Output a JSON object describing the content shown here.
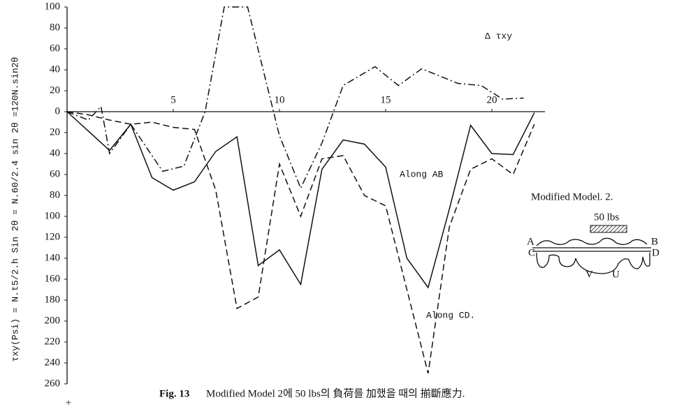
{
  "chart_data": {
    "type": "line",
    "y_label": "τxy(Psi) = N.t5/2.h Sin 2θ = N.60/2.4 sin 2θ =120N.sin2θ",
    "caption_label": "Fig. 13",
    "caption": "Modified Model 2에 50 lbs의 負荷를 加했을 때의 揃斷應力.",
    "xlim": [
      0,
      22.5
    ],
    "ylim": [
      -260,
      100
    ],
    "xticks": [
      5,
      10,
      15,
      20
    ],
    "yticks": [
      100,
      80,
      60,
      40,
      20,
      0,
      {
        "value": -20,
        "label": "20"
      },
      {
        "value": -40,
        "label": "40"
      },
      {
        "value": -60,
        "label": "60"
      },
      {
        "value": -80,
        "label": "80"
      },
      {
        "value": -100,
        "label": "100"
      },
      {
        "value": -120,
        "label": "120"
      },
      {
        "value": -140,
        "label": "140"
      },
      {
        "value": -160,
        "label": "160"
      },
      {
        "value": -180,
        "label": "180"
      },
      {
        "value": -200,
        "label": "200"
      },
      {
        "value": -220,
        "label": "220"
      },
      {
        "value": -240,
        "label": "240"
      },
      {
        "value": -260,
        "label": "260"
      }
    ],
    "series": [
      {
        "name": "Along AB",
        "color": "#111111",
        "style": "solid",
        "x": [
          0,
          2,
          3,
          4,
          5,
          6,
          7,
          8,
          9,
          10,
          11,
          12,
          13,
          14,
          15,
          16,
          17,
          18,
          19,
          20,
          21,
          22
        ],
        "values": [
          0,
          -37,
          -12,
          -63,
          -75,
          -67,
          -38,
          -24,
          -147,
          -132,
          -165,
          -55,
          -27,
          -31,
          -53,
          -140,
          -168,
          -93,
          -13,
          -40,
          -41,
          -1
        ]
      },
      {
        "name": "Along CD.",
        "color": "#111111",
        "style": "dashed",
        "x": [
          0,
          1,
          2,
          3,
          4,
          5,
          6,
          7,
          8,
          9,
          10,
          11,
          12,
          13,
          14,
          15,
          16,
          17,
          18,
          19,
          20,
          21,
          22
        ],
        "values": [
          0,
          -3,
          -8,
          -12,
          -10,
          -15,
          -17,
          -75,
          -188,
          -177,
          -50,
          -100,
          -45,
          -42,
          -80,
          -90,
          -170,
          -250,
          -110,
          -55,
          -45,
          -60,
          -12
        ]
      },
      {
        "name": "Δ τxy",
        "color": "#111111",
        "style": "dashdot",
        "x": [
          0,
          1,
          1.6,
          2,
          3,
          4.5,
          5.5,
          6.5,
          7.4,
          8.5,
          10,
          11,
          12,
          13,
          14.5,
          15.6,
          16.7,
          18.4,
          19.5,
          20.5,
          21.5
        ],
        "values": [
          0,
          -8,
          5,
          -40,
          -12,
          -57,
          -52,
          0,
          100,
          100,
          -23,
          -73,
          -30,
          25,
          43,
          25,
          41,
          27,
          25,
          12,
          13
        ]
      }
    ],
    "inset": {
      "title": "Modified Model. 2.",
      "load": "50 lbs",
      "points": [
        "A",
        "B",
        "C",
        "D",
        "V",
        "U"
      ]
    }
  }
}
